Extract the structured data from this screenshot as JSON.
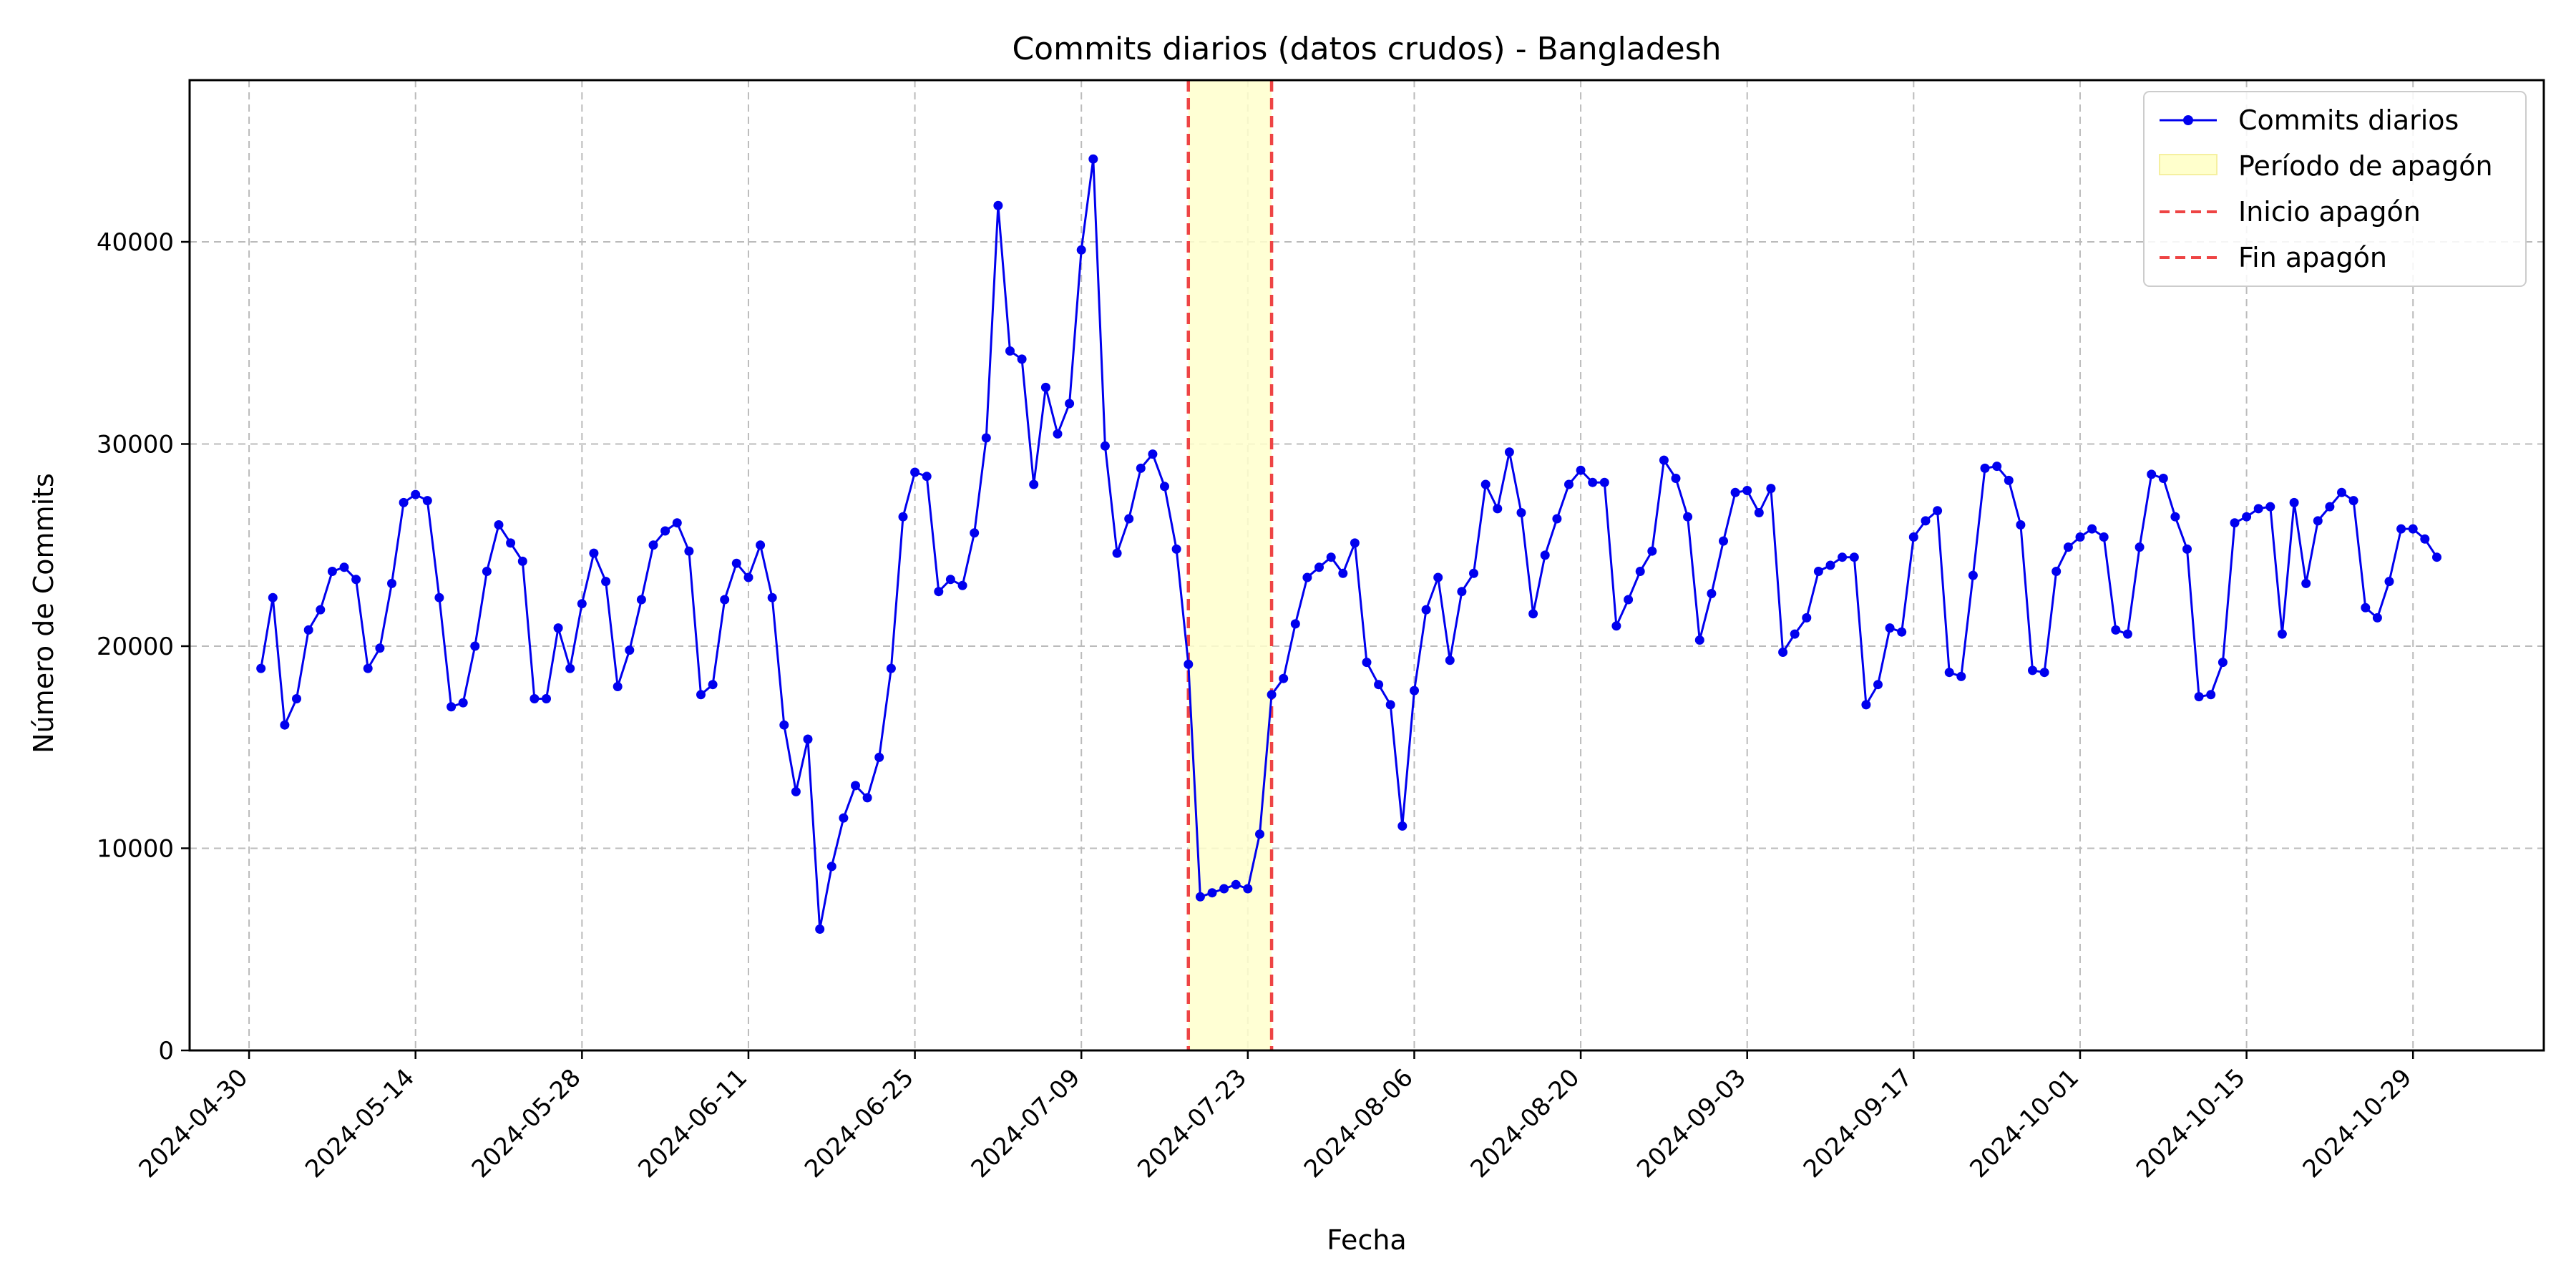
{
  "chart_data": {
    "type": "line",
    "title": "Commits diarios (datos crudos) - Bangladesh",
    "xlabel": "Fecha",
    "ylabel": "Número de Commits",
    "x_range": [
      "2024-04-25",
      "2024-11-09"
    ],
    "ylim": [
      0,
      48000
    ],
    "grid": true,
    "legend_position": "top-right",
    "x_ticks": [
      "2024-04-30",
      "2024-05-14",
      "2024-05-28",
      "2024-06-11",
      "2024-06-25",
      "2024-07-09",
      "2024-07-23",
      "2024-08-06",
      "2024-08-20",
      "2024-09-03",
      "2024-09-17",
      "2024-10-01",
      "2024-10-15",
      "2024-10-29"
    ],
    "y_ticks": [
      0,
      10000,
      20000,
      30000,
      40000
    ],
    "y_tick_labels": [
      "0",
      "10000",
      "20000",
      "30000",
      "40000"
    ],
    "colors": {
      "series": "#0000ee",
      "blackout_fill": "#ffffcc",
      "blackout_line": "#ee4444",
      "grid": "#bbbbbb"
    },
    "blackout": {
      "start": "2024-07-18",
      "end": "2024-07-25"
    },
    "legend": [
      {
        "label": "Commits diarios",
        "style": "line-marker"
      },
      {
        "label": "Período de apagón",
        "style": "fill"
      },
      {
        "label": "Inicio apagón",
        "style": "dashed"
      },
      {
        "label": "Fin apagón",
        "style": "dashed"
      }
    ],
    "series": [
      {
        "name": "Commits diarios",
        "start_date": "2024-05-01",
        "values": [
          18900,
          22400,
          16100,
          17400,
          20800,
          21800,
          23700,
          23900,
          23300,
          18900,
          19900,
          23100,
          27100,
          27500,
          27200,
          22400,
          17000,
          17200,
          20000,
          23700,
          26000,
          25100,
          24200,
          17400,
          17400,
          20900,
          18900,
          22100,
          24600,
          23200,
          18000,
          19800,
          22300,
          25000,
          25700,
          26100,
          24700,
          17600,
          18100,
          22300,
          24100,
          23400,
          25000,
          22400,
          16100,
          12800,
          15400,
          6000,
          9100,
          11500,
          13100,
          12500,
          14500,
          18900,
          26400,
          28600,
          28400,
          22700,
          23300,
          23000,
          25600,
          30300,
          41800,
          34600,
          34200,
          28000,
          32800,
          30500,
          32000,
          39600,
          44100,
          29900,
          24600,
          26300,
          28800,
          29500,
          27900,
          24800,
          19100,
          7600,
          7800,
          8000,
          8200,
          8000,
          10700,
          17600,
          18400,
          21100,
          23400,
          23900,
          24400,
          23600,
          25100,
          19200,
          18100,
          17100,
          11100,
          17800,
          21800,
          23400,
          19300,
          22700,
          23600,
          28000,
          26800,
          29600,
          26600,
          21600,
          24500,
          26300,
          28000,
          28700,
          28100,
          28100,
          21000,
          22300,
          23700,
          24700,
          29200,
          28300,
          26400,
          20300,
          22600,
          25200,
          27600,
          27700,
          26600,
          27800,
          19700,
          20600,
          21400,
          23700,
          24000,
          24400,
          24400,
          17100,
          18100,
          20900,
          20700,
          25400,
          26200,
          26700,
          18700,
          18500,
          23500,
          28800,
          28900,
          28200,
          26000,
          18800,
          18700,
          23700,
          24900,
          25400,
          25800,
          25400,
          20800,
          20600,
          24900,
          28500,
          28300,
          26400,
          24800,
          17500,
          17600,
          19200,
          26100,
          26400,
          26800,
          26900,
          20600,
          27100,
          23100,
          26200,
          26900,
          27600,
          27200,
          21900,
          21400,
          23200,
          25800,
          25800,
          25300,
          24400
        ]
      }
    ]
  }
}
